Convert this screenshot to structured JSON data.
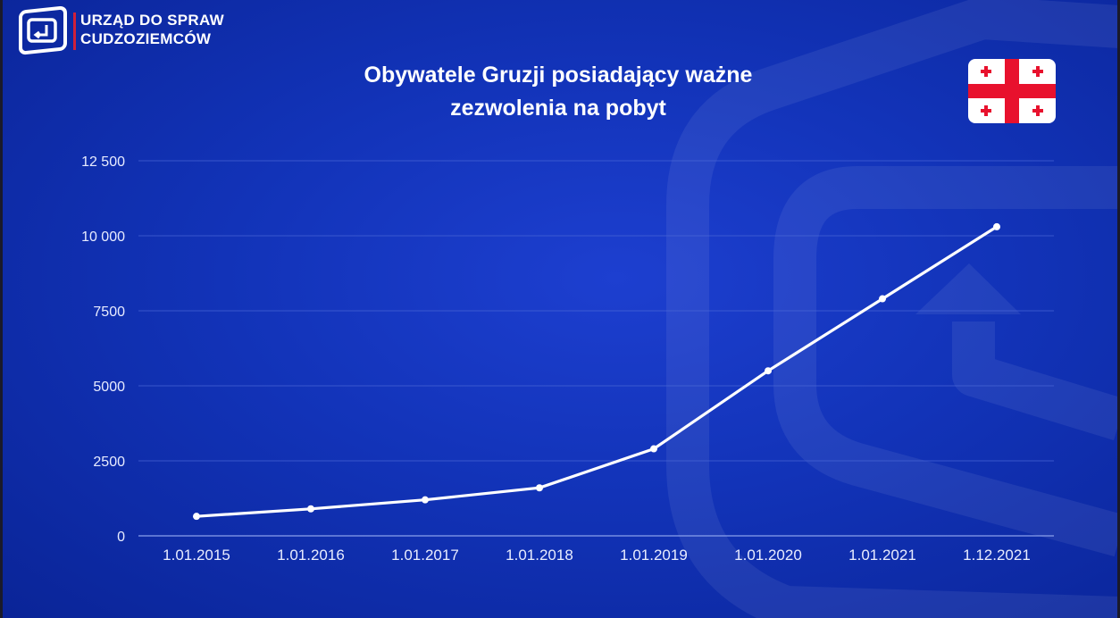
{
  "logo": {
    "line1": "URZĄD DO SPRAW",
    "line2": "CUDZOZIEMCÓW",
    "icon": "office-logo-icon",
    "accent_color": "#d0203a"
  },
  "title_lines": [
    "Obywatele Gruzji posiadający ważne",
    "zezwolenia na pobyt"
  ],
  "flag": {
    "icon": "georgia-flag-icon",
    "colors": {
      "field": "#ffffff",
      "cross": "#e8112d"
    }
  },
  "colors": {
    "background": "#1233b8",
    "line": "#ffffff",
    "grid": "#4a66d6",
    "text": "#ffffff"
  },
  "chart_data": {
    "type": "line",
    "title": "Obywatele Gruzji posiadający ważne zezwolenia na pobyt",
    "xlabel": "",
    "ylabel": "",
    "categories": [
      "1.01.2015",
      "1.01.2016",
      "1.01.2017",
      "1.01.2018",
      "1.01.2019",
      "1.01.2020",
      "1.01.2021",
      "1.12.2021"
    ],
    "series": [
      {
        "values": [
          650,
          900,
          1200,
          1600,
          2900,
          5500,
          7900,
          10300
        ]
      }
    ],
    "ylim": [
      0,
      12500
    ],
    "yticks": [
      0,
      2500,
      5000,
      7500,
      10000,
      12500
    ],
    "ytick_labels": [
      "0",
      "2500",
      "5000",
      "7500",
      "10 000",
      "12 500"
    ],
    "grid": true,
    "legend": "none"
  }
}
